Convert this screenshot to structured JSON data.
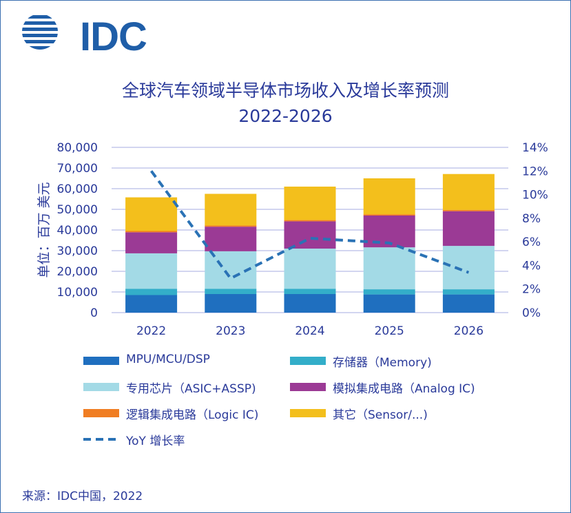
{
  "logo": {
    "text": "IDC"
  },
  "chart_data": {
    "type": "bar",
    "stacked": true,
    "title": "全球汽车领域半导体市场收入及增长率预测",
    "subtitle": "2022-2026",
    "ylabel": "单位：百万 美元",
    "categories": [
      "2022",
      "2023",
      "2024",
      "2025",
      "2026"
    ],
    "ylim": [
      0,
      80000
    ],
    "y_ticks": [
      0,
      10000,
      20000,
      30000,
      40000,
      50000,
      60000,
      70000,
      80000
    ],
    "y_tick_labels": [
      "0",
      "10,000",
      "20,000",
      "30,000",
      "40,000",
      "50,000",
      "60,000",
      "70,000",
      "80,000"
    ],
    "y2lim": [
      0,
      14
    ],
    "y2_ticks": [
      0,
      2,
      4,
      6,
      8,
      10,
      12,
      14
    ],
    "y2_tick_labels": [
      "0%",
      "2%",
      "4%",
      "6%",
      "8%",
      "10%",
      "12%",
      "14%"
    ],
    "series": [
      {
        "name": "MPU/MCU/DSP",
        "color": "#1f6fbf",
        "values": [
          8500,
          9000,
          9000,
          8800,
          8800
        ]
      },
      {
        "name": "存储器（Memory)",
        "color": "#33aec9",
        "values": [
          3000,
          2500,
          2500,
          2500,
          2500
        ]
      },
      {
        "name": "专用芯片（ASIC+ASSP)",
        "color": "#a3dae6",
        "values": [
          17200,
          18200,
          19500,
          20300,
          21000
        ]
      },
      {
        "name": "模拟集成电路（Analog IC)",
        "color": "#9b3a95",
        "values": [
          10200,
          11900,
          13200,
          15400,
          16800
        ]
      },
      {
        "name": "逻辑集成电路（Logic IC)",
        "color": "#f07d22",
        "values": [
          600,
          600,
          600,
          600,
          600
        ]
      },
      {
        "name": "其它（Sensor/...)",
        "color": "#f3bf1c",
        "values": [
          16300,
          15300,
          16200,
          17400,
          17400
        ]
      }
    ],
    "line_series": {
      "name": "YoY 增长率",
      "color": "#2a72b5",
      "axis": "y2",
      "values": [
        12.0,
        2.9,
        6.3,
        5.9,
        3.4
      ]
    },
    "legend": [
      {
        "label": "MPU/MCU/DSP",
        "kind": "box",
        "color": "#1f6fbf"
      },
      {
        "label": "存储器（Memory)",
        "kind": "box",
        "color": "#33aec9"
      },
      {
        "label": "专用芯片（ASIC+ASSP)",
        "kind": "box",
        "color": "#a3dae6"
      },
      {
        "label": "模拟集成电路（Analog IC)",
        "kind": "box",
        "color": "#9b3a95"
      },
      {
        "label": "逻辑集成电路（Logic IC)",
        "kind": "box",
        "color": "#f07d22"
      },
      {
        "label": "其它（Sensor/...)",
        "kind": "box",
        "color": "#f3bf1c"
      },
      {
        "label": "YoY 增长率",
        "kind": "dash",
        "color": "#2a72b5"
      }
    ],
    "legend_position": "bottom",
    "grid": true
  },
  "colors": {
    "text": "#2a3a9a",
    "grid": "#b8bce8",
    "logo": "#1f5ea8"
  },
  "source": "来源：IDC中国，2022"
}
